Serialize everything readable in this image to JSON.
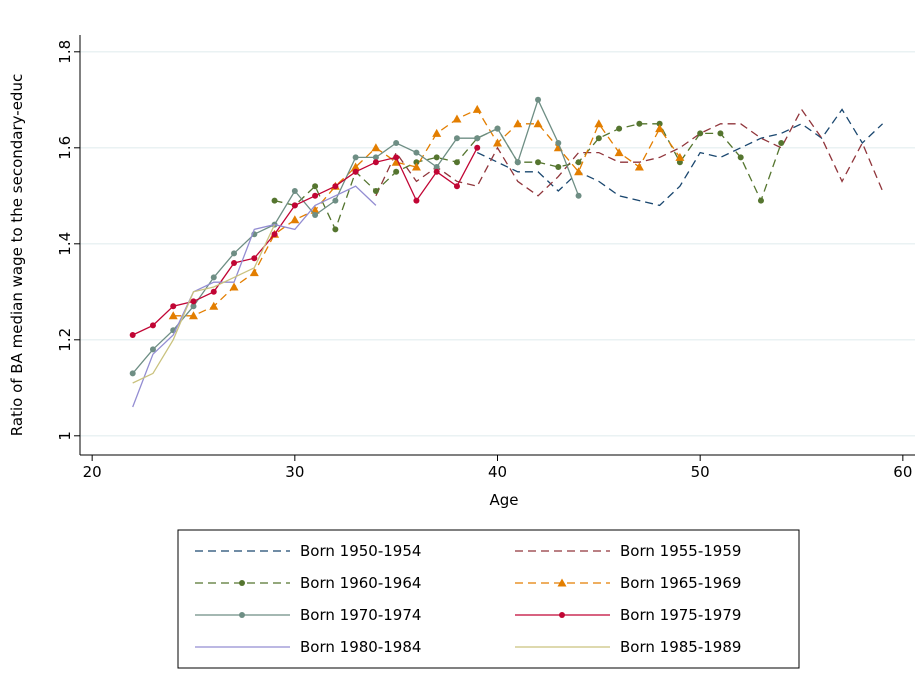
{
  "chart_data": {
    "type": "line",
    "x_label": "Age",
    "y_label": "Ratio of BA median wage to the secondary-educ",
    "xlim": [
      19.4,
      60.6
    ],
    "ylim": [
      0.96,
      1.835
    ],
    "xticks": [
      20,
      30,
      40,
      50,
      60
    ],
    "yticks": [
      1,
      1.2,
      1.4,
      1.6,
      1.8
    ],
    "grid": true,
    "legend_position": "bottom",
    "series": [
      {
        "name": "Born 1950-1954",
        "color": "#1a476f",
        "dashed": true,
        "marker": null,
        "x": [
          39,
          40,
          41,
          42,
          43,
          44,
          45,
          46,
          47,
          48,
          49,
          50,
          51,
          52,
          53,
          54,
          55,
          56,
          57,
          58,
          59
        ],
        "values": [
          1.59,
          1.57,
          1.55,
          1.55,
          1.51,
          1.55,
          1.53,
          1.5,
          1.49,
          1.48,
          1.52,
          1.59,
          1.58,
          1.6,
          1.62,
          1.63,
          1.65,
          1.62,
          1.68,
          1.61,
          1.65
        ]
      },
      {
        "name": "Born 1955-1959",
        "color": "#90353b",
        "dashed": true,
        "marker": null,
        "x": [
          34,
          35,
          36,
          37,
          38,
          39,
          40,
          41,
          42,
          43,
          44,
          45,
          46,
          47,
          48,
          49,
          50,
          51,
          52,
          53,
          54,
          55,
          56,
          57,
          58,
          59
        ],
        "values": [
          1.5,
          1.59,
          1.53,
          1.56,
          1.53,
          1.52,
          1.6,
          1.53,
          1.5,
          1.54,
          1.59,
          1.59,
          1.57,
          1.57,
          1.58,
          1.6,
          1.63,
          1.65,
          1.65,
          1.62,
          1.6,
          1.68,
          1.62,
          1.53,
          1.61,
          1.51
        ]
      },
      {
        "name": "Born 1960-1964",
        "color": "#55752f",
        "dashed": true,
        "marker": "circle",
        "x": [
          29,
          30,
          31,
          32,
          33,
          34,
          35,
          36,
          37,
          38,
          39,
          40,
          41,
          42,
          43,
          44,
          45,
          46,
          47,
          48,
          49,
          50,
          51,
          52,
          53,
          54
        ],
        "values": [
          1.49,
          1.48,
          1.52,
          1.43,
          1.55,
          1.51,
          1.55,
          1.57,
          1.58,
          1.57,
          1.62,
          1.64,
          1.57,
          1.57,
          1.56,
          1.57,
          1.62,
          1.64,
          1.65,
          1.65,
          1.57,
          1.63,
          1.63,
          1.58,
          1.49,
          1.61
        ]
      },
      {
        "name": "Born 1965-1969",
        "color": "#e37e00",
        "dashed": true,
        "marker": "triangle",
        "x": [
          24,
          25,
          26,
          27,
          28,
          29,
          30,
          31,
          32,
          33,
          34,
          35,
          36,
          37,
          38,
          39,
          40,
          41,
          42,
          43,
          44,
          45,
          46,
          47,
          48,
          49
        ],
        "values": [
          1.25,
          1.25,
          1.27,
          1.31,
          1.34,
          1.42,
          1.45,
          1.47,
          1.52,
          1.56,
          1.6,
          1.57,
          1.56,
          1.63,
          1.66,
          1.68,
          1.61,
          1.65,
          1.65,
          1.6,
          1.55,
          1.65,
          1.59,
          1.56,
          1.64,
          1.58
        ]
      },
      {
        "name": "Born 1970-1974",
        "color": "#6e8e84",
        "dashed": false,
        "marker": "circle",
        "x": [
          22,
          23,
          24,
          25,
          26,
          27,
          28,
          29,
          30,
          31,
          32,
          33,
          34,
          35,
          36,
          37,
          38,
          39,
          40,
          41,
          42,
          43,
          44
        ],
        "values": [
          1.13,
          1.18,
          1.22,
          1.27,
          1.33,
          1.38,
          1.42,
          1.44,
          1.51,
          1.46,
          1.49,
          1.58,
          1.58,
          1.61,
          1.59,
          1.56,
          1.62,
          1.62,
          1.64,
          1.57,
          1.7,
          1.61,
          1.5
        ]
      },
      {
        "name": "Born 1975-1979",
        "color": "#c10534",
        "dashed": false,
        "marker": "circle",
        "x": [
          22,
          23,
          24,
          25,
          26,
          27,
          28,
          29,
          30,
          31,
          32,
          33,
          34,
          35,
          36,
          37,
          38,
          39
        ],
        "values": [
          1.21,
          1.23,
          1.27,
          1.28,
          1.3,
          1.36,
          1.37,
          1.42,
          1.48,
          1.5,
          1.52,
          1.55,
          1.57,
          1.58,
          1.49,
          1.55,
          1.52,
          1.6
        ]
      },
      {
        "name": "Born 1980-1984",
        "color": "#938dd2",
        "dashed": false,
        "marker": null,
        "x": [
          22,
          23,
          24,
          25,
          26,
          27,
          28,
          29,
          30,
          31,
          32,
          33,
          34
        ],
        "values": [
          1.06,
          1.17,
          1.21,
          1.3,
          1.32,
          1.32,
          1.43,
          1.44,
          1.43,
          1.48,
          1.5,
          1.52,
          1.48
        ]
      },
      {
        "name": "Born 1985-1989",
        "color": "#cac27e",
        "dashed": false,
        "marker": null,
        "x": [
          22,
          23,
          24,
          25,
          26,
          27,
          28,
          29
        ],
        "values": [
          1.11,
          1.13,
          1.2,
          1.3,
          1.31,
          1.33,
          1.35,
          1.44
        ]
      }
    ]
  }
}
